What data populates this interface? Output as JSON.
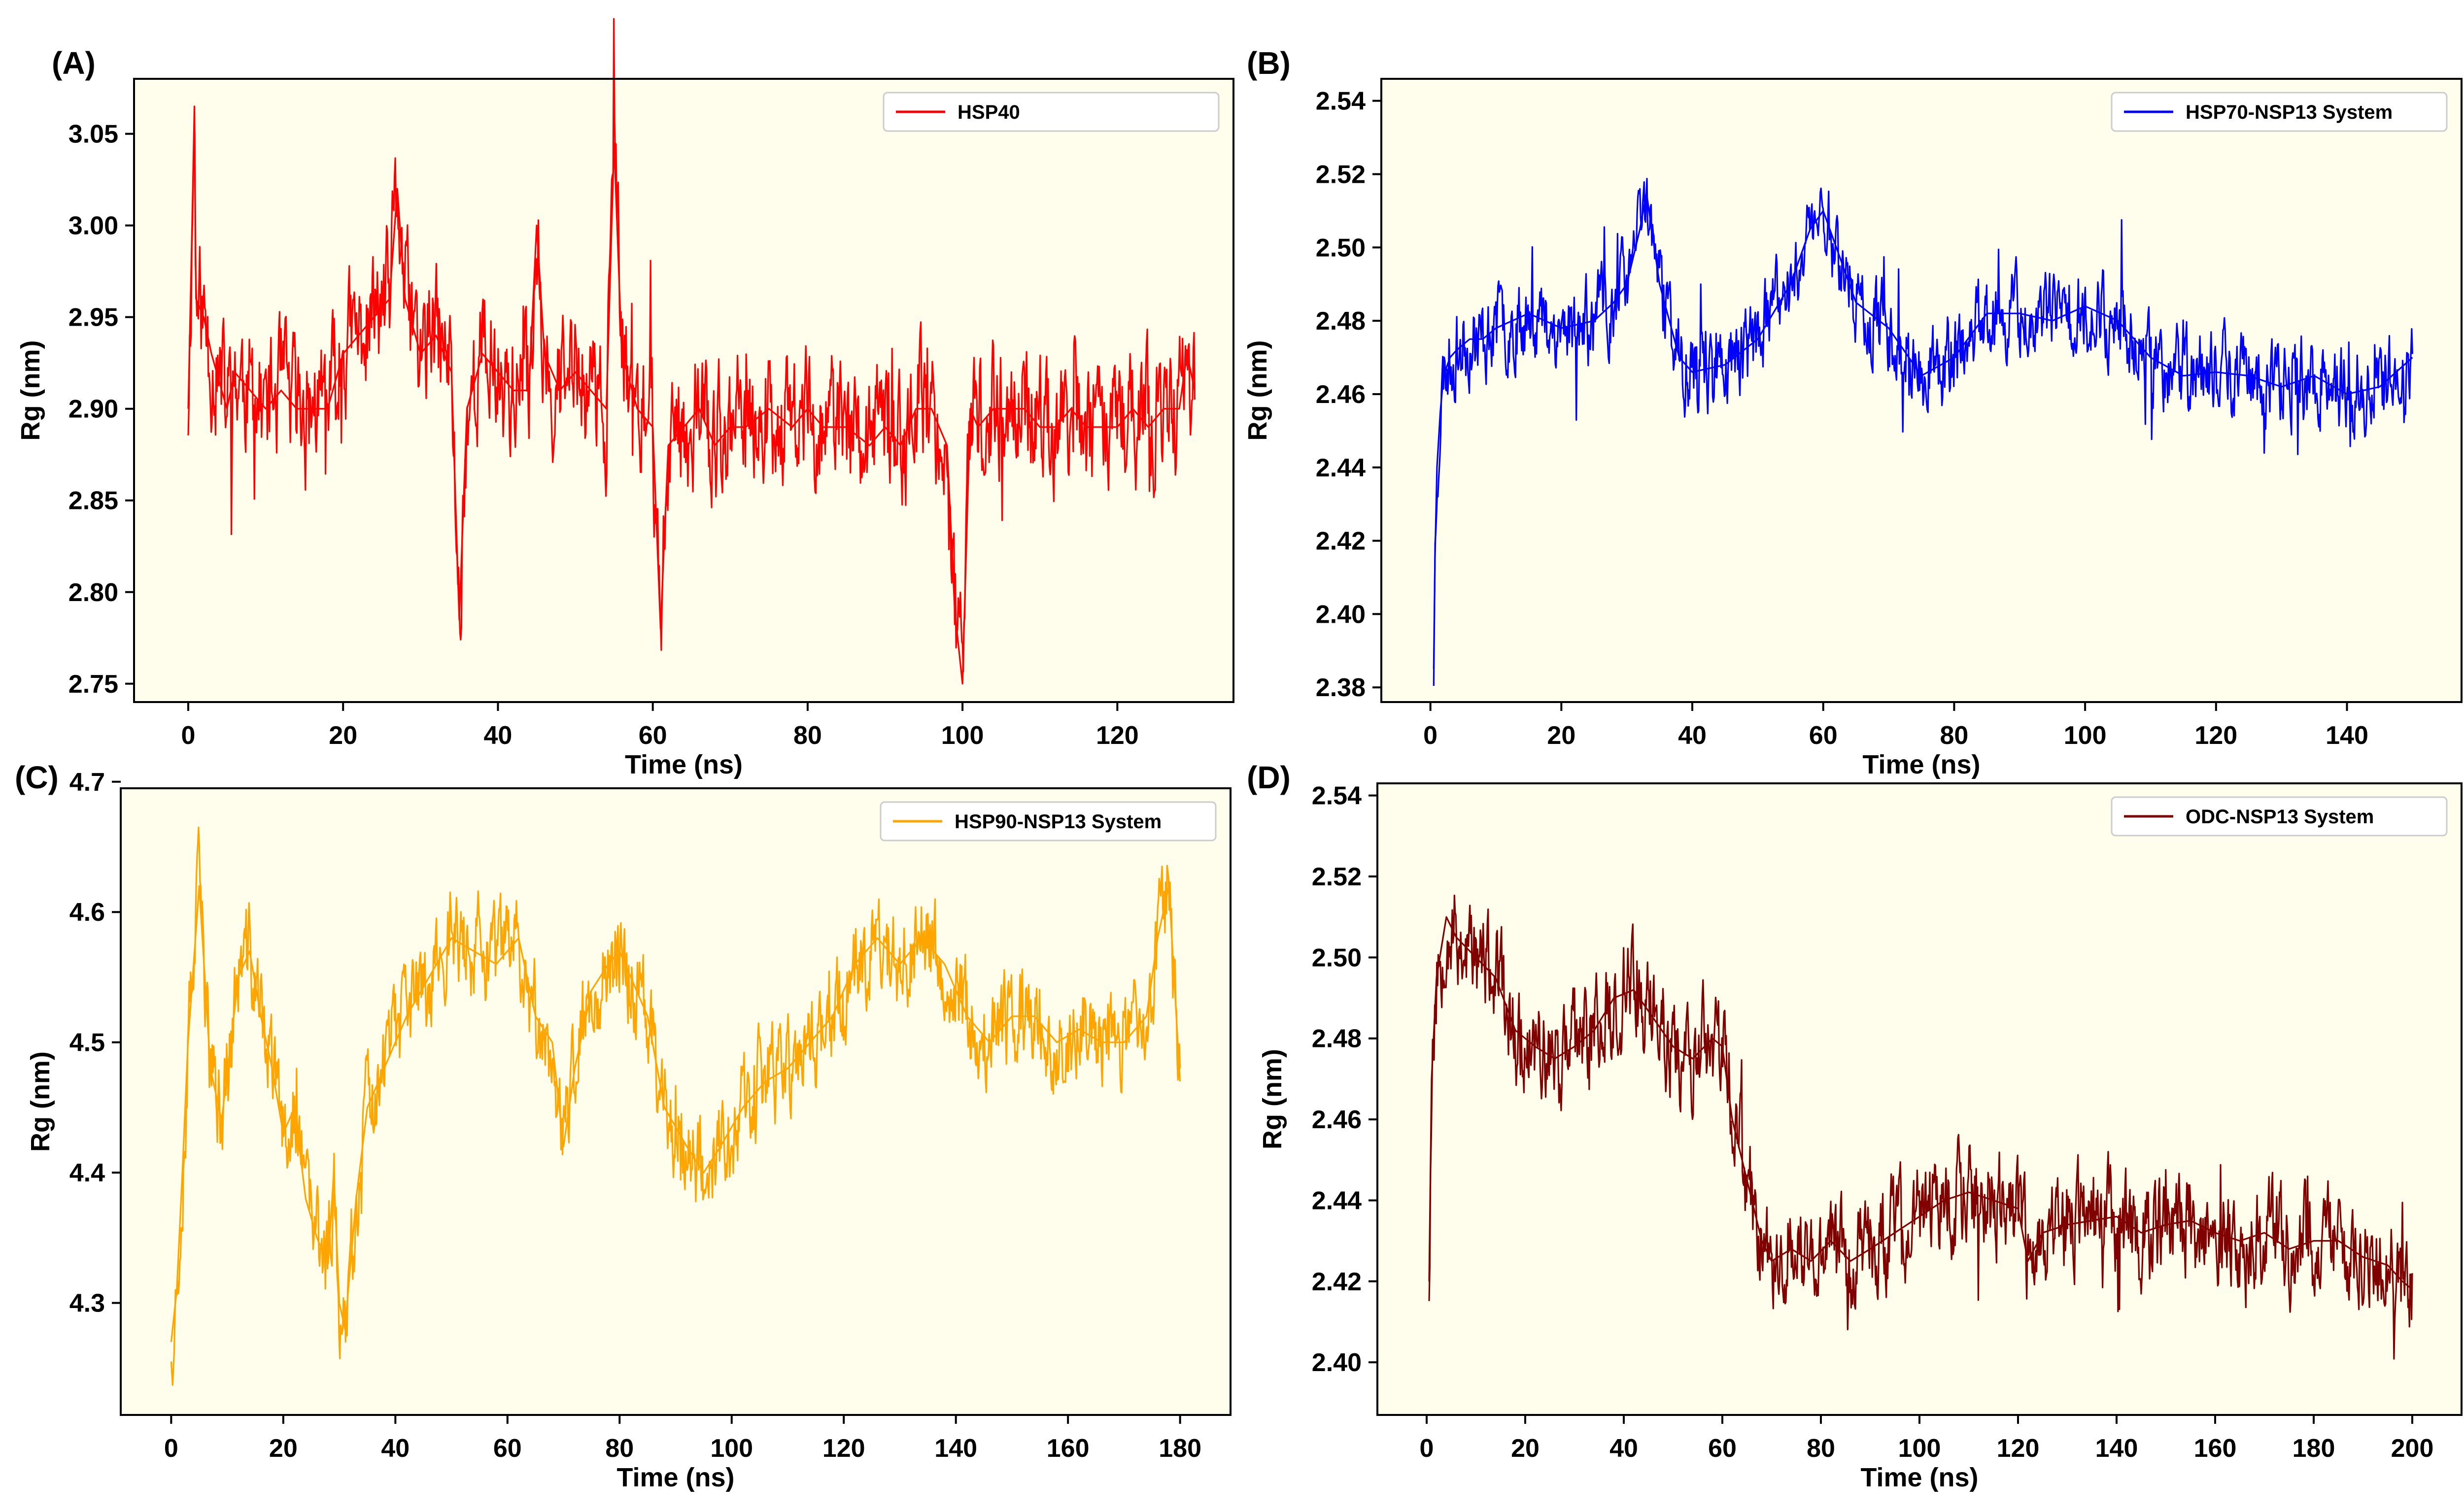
{
  "figure": {
    "background": "#ffffff",
    "plot_background": "#fffdeb"
  },
  "chart_data": [
    {
      "panel": "(A)",
      "type": "line",
      "xlabel": "Time (ns)",
      "ylabel": "Rg (nm)",
      "xlim": [
        -7,
        135
      ],
      "ylim": [
        2.74,
        3.08
      ],
      "xticks": [
        0,
        20,
        40,
        60,
        80,
        100,
        120
      ],
      "yticks": [
        2.75,
        2.8,
        2.85,
        2.9,
        2.95,
        3.0,
        3.05
      ],
      "ytick_decimals": 2,
      "legend": {
        "location": "upper-right"
      },
      "grid": false,
      "series": [
        {
          "name": "HSP40",
          "color": "#ff0000",
          "x": [
            0,
            0.5,
            0.8,
            1,
            2,
            3,
            5,
            6,
            8,
            10,
            12,
            14,
            16,
            18,
            20,
            22,
            24,
            26,
            27,
            28,
            30,
            32,
            34,
            35,
            36,
            38,
            40,
            42,
            44,
            45,
            46,
            48,
            50,
            52,
            54,
            55,
            56,
            58,
            60,
            61,
            62,
            64,
            66,
            68,
            70,
            72,
            75,
            78,
            80,
            82,
            85,
            88,
            90,
            92,
            94,
            96,
            98,
            99,
            100,
            101,
            102,
            104,
            106,
            108,
            110,
            112,
            114,
            116,
            118,
            120,
            122,
            124,
            126,
            128,
            129,
            130
          ],
          "y": [
            2.9,
            3.0,
            3.065,
            2.96,
            2.95,
            2.93,
            2.9,
            2.92,
            2.91,
            2.9,
            2.91,
            2.9,
            2.9,
            2.9,
            2.93,
            2.94,
            2.95,
            2.96,
            3.02,
            2.96,
            2.93,
            2.94,
            2.92,
            2.785,
            2.9,
            2.93,
            2.92,
            2.91,
            2.91,
            3.0,
            2.93,
            2.91,
            2.92,
            2.91,
            2.9,
            3.045,
            2.93,
            2.9,
            2.89,
            2.78,
            2.88,
            2.89,
            2.9,
            2.88,
            2.89,
            2.89,
            2.9,
            2.89,
            2.9,
            2.89,
            2.89,
            2.88,
            2.89,
            2.88,
            2.9,
            2.9,
            2.88,
            2.79,
            2.75,
            2.9,
            2.89,
            2.9,
            2.9,
            2.9,
            2.89,
            2.89,
            2.9,
            2.89,
            2.89,
            2.89,
            2.9,
            2.89,
            2.9,
            2.9,
            2.93,
            2.91
          ],
          "noise": 0.028,
          "spike_amp": 0.07,
          "seed": 11
        }
      ]
    },
    {
      "panel": "(B)",
      "type": "line",
      "xlabel": "Time (ns)",
      "ylabel": "Rg (nm)",
      "xlim": [
        -7.5,
        157.5
      ],
      "ylim": [
        2.376,
        2.546
      ],
      "xticks": [
        0,
        20,
        40,
        60,
        80,
        100,
        120,
        140
      ],
      "yticks": [
        2.38,
        2.4,
        2.42,
        2.44,
        2.46,
        2.48,
        2.5,
        2.52,
        2.54
      ],
      "ytick_decimals": 2,
      "legend": {
        "location": "upper-right"
      },
      "grid": false,
      "series": [
        {
          "name": "HSP70-NSP13 System",
          "color": "#0000ff",
          "x": [
            0.5,
            0.7,
            1,
            1.5,
            2,
            3,
            4,
            6,
            8,
            10,
            15,
            20,
            25,
            28,
            30,
            32,
            33,
            35,
            38,
            40,
            45,
            50,
            55,
            58,
            60,
            62,
            65,
            70,
            75,
            80,
            85,
            90,
            95,
            100,
            105,
            110,
            115,
            120,
            125,
            130,
            135,
            140,
            145,
            150
          ],
          "y": [
            2.385,
            2.415,
            2.44,
            2.455,
            2.465,
            2.47,
            2.472,
            2.475,
            2.475,
            2.478,
            2.482,
            2.478,
            2.48,
            2.485,
            2.49,
            2.505,
            2.515,
            2.49,
            2.47,
            2.466,
            2.468,
            2.475,
            2.49,
            2.505,
            2.51,
            2.5,
            2.485,
            2.478,
            2.465,
            2.47,
            2.482,
            2.482,
            2.48,
            2.484,
            2.48,
            2.47,
            2.465,
            2.466,
            2.465,
            2.462,
            2.465,
            2.46,
            2.462,
            2.47
          ],
          "noise": 0.009,
          "spike_amp": 0.02,
          "seed": 23
        }
      ]
    },
    {
      "panel": "(C)",
      "type": "line",
      "xlabel": "Time (ns)",
      "ylabel": "Rg (nm)",
      "xlim": [
        -9,
        189
      ],
      "ylim": [
        4.214,
        4.695
      ],
      "xticks": [
        0,
        20,
        40,
        60,
        80,
        100,
        120,
        140,
        160,
        180
      ],
      "yticks": [
        4.3,
        4.4,
        4.5,
        4.6,
        4.7
      ],
      "ytick_decimals": 1,
      "legend": {
        "location": "upper-right"
      },
      "grid": false,
      "series": [
        {
          "name": "HSP90-NSP13 System",
          "color": "#ffa500",
          "x": [
            0,
            1,
            2,
            3,
            5,
            7,
            9,
            12,
            14,
            16,
            18,
            20,
            22,
            24,
            26,
            28,
            29,
            30,
            31,
            33,
            35,
            38,
            42,
            46,
            50,
            54,
            58,
            62,
            65,
            68,
            70,
            72,
            75,
            78,
            80,
            82,
            85,
            88,
            92,
            95,
            98,
            102,
            106,
            110,
            114,
            118,
            122,
            126,
            130,
            134,
            138,
            142,
            146,
            150,
            154,
            158,
            162,
            166,
            170,
            174,
            176,
            178,
            180
          ],
          "y": [
            4.27,
            4.31,
            4.4,
            4.5,
            4.62,
            4.48,
            4.44,
            4.55,
            4.57,
            4.52,
            4.48,
            4.43,
            4.45,
            4.38,
            4.35,
            4.33,
            4.4,
            4.3,
            4.28,
            4.38,
            4.45,
            4.48,
            4.52,
            4.55,
            4.58,
            4.57,
            4.56,
            4.58,
            4.52,
            4.5,
            4.42,
            4.48,
            4.54,
            4.56,
            4.57,
            4.55,
            4.52,
            4.45,
            4.42,
            4.4,
            4.42,
            4.45,
            4.47,
            4.48,
            4.5,
            4.52,
            4.56,
            4.58,
            4.56,
            4.58,
            4.56,
            4.52,
            4.5,
            4.52,
            4.52,
            4.5,
            4.51,
            4.5,
            4.5,
            4.52,
            4.58,
            4.62,
            4.47
          ],
          "noise": 0.03,
          "spike_amp": 0.05,
          "seed": 37
        }
      ]
    },
    {
      "panel": "(D)",
      "type": "line",
      "xlabel": "Time (ns)",
      "ylabel": "Rg (nm)",
      "xlim": [
        -10,
        210
      ],
      "ylim": [
        2.387,
        2.543
      ],
      "xticks": [
        0,
        20,
        40,
        60,
        80,
        100,
        120,
        140,
        160,
        180,
        200
      ],
      "yticks": [
        2.4,
        2.42,
        2.44,
        2.46,
        2.48,
        2.5,
        2.52,
        2.54
      ],
      "ytick_decimals": 2,
      "legend": {
        "location": "upper-right"
      },
      "grid": false,
      "series": [
        {
          "name": "ODC-NSP13 System",
          "color": "#800000",
          "x": [
            0.5,
            1,
            2,
            4,
            6,
            10,
            14,
            18,
            22,
            26,
            30,
            34,
            38,
            42,
            46,
            50,
            54,
            58,
            60,
            62,
            64,
            66,
            68,
            70,
            74,
            78,
            82,
            86,
            90,
            95,
            100,
            105,
            110,
            115,
            120,
            122,
            125,
            130,
            135,
            140,
            145,
            150,
            155,
            160,
            165,
            170,
            175,
            180,
            185,
            190,
            195,
            198,
            200
          ],
          "y": [
            2.42,
            2.47,
            2.495,
            2.51,
            2.505,
            2.5,
            2.495,
            2.482,
            2.478,
            2.475,
            2.478,
            2.482,
            2.49,
            2.492,
            2.485,
            2.478,
            2.475,
            2.48,
            2.478,
            2.46,
            2.45,
            2.44,
            2.43,
            2.425,
            2.428,
            2.425,
            2.43,
            2.425,
            2.428,
            2.432,
            2.436,
            2.44,
            2.442,
            2.44,
            2.438,
            2.425,
            2.432,
            2.434,
            2.435,
            2.436,
            2.432,
            2.434,
            2.435,
            2.432,
            2.43,
            2.432,
            2.428,
            2.43,
            2.43,
            2.426,
            2.424,
            2.42,
            2.418
          ],
          "noise": 0.01,
          "spike_amp": 0.02,
          "seed": 53
        }
      ]
    }
  ]
}
